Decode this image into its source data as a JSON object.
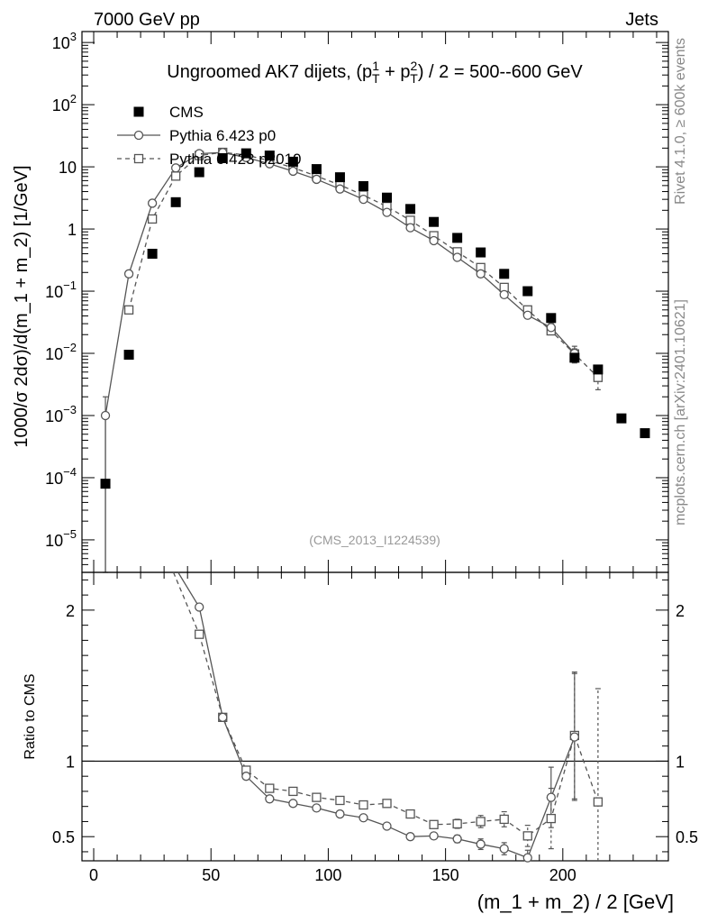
{
  "header": {
    "left": "7000 GeV pp",
    "right": "Jets"
  },
  "side_labels": {
    "rivet": "Rivet 4.1.0, ≥ 600k events",
    "mcplots": "mcplots.cern.ch [arXiv:2401.10621]"
  },
  "chart_data": [
    {
      "type": "scatter",
      "title": "Ungroomed AK7 dijets, (p_T^1 + p_T^2) / 2 = 500--600 GeV",
      "ylabel": "1000/σ 2dσ)/d(m_1 + m_2) [1/GeV]",
      "xlabel": "",
      "yscale": "log",
      "xlim": [
        -5,
        245
      ],
      "ylim": [
        3e-06,
        1500
      ],
      "watermark": "(CMS_2013_I1224539)",
      "y_ticks": [
        "10^-5",
        "10^-4",
        "10^-3",
        "10^-2",
        "10^-1",
        "1",
        "10",
        "10^2",
        "10^3"
      ],
      "series": [
        {
          "name": "CMS",
          "style": "marker",
          "color": "#000000",
          "x": [
            5,
            15,
            25,
            35,
            45,
            55,
            65,
            75,
            85,
            95,
            105,
            115,
            125,
            135,
            145,
            155,
            165,
            175,
            185,
            195,
            205,
            215,
            225,
            235
          ],
          "y": [
            8e-05,
            0.0095,
            0.4,
            2.7,
            8.2,
            13.8,
            16.5,
            15.2,
            12.1,
            9.2,
            6.8,
            4.9,
            3.2,
            2.1,
            1.3,
            0.72,
            0.42,
            0.19,
            0.1,
            0.037,
            0.0085,
            0.0055,
            0.0009,
            0.00052
          ]
        },
        {
          "name": "Pythia 6.423 p0",
          "style": "solid-circle",
          "color": "#555555",
          "x": [
            5,
            15,
            25,
            35,
            45,
            55,
            65,
            75,
            85,
            95,
            105,
            115,
            125,
            135,
            145,
            155,
            165,
            175,
            185,
            195,
            205
          ],
          "y": [
            0.001,
            0.19,
            2.6,
            9.6,
            16.3,
            17.0,
            14.1,
            11.2,
            8.5,
            6.3,
            4.4,
            3.0,
            1.85,
            1.05,
            0.65,
            0.35,
            0.19,
            0.088,
            0.041,
            0.026,
            0.01
          ],
          "y_err": [
            0.001,
            0,
            0,
            0,
            0,
            0,
            0,
            0,
            0,
            0,
            0,
            0,
            0,
            0,
            0,
            0,
            0,
            0,
            0,
            0.004,
            0.003
          ]
        },
        {
          "name": "Pythia 6.423 p2010",
          "style": "dashed-square",
          "color": "#555555",
          "x": [
            15,
            25,
            35,
            45,
            55,
            65,
            75,
            85,
            95,
            105,
            115,
            125,
            135,
            145,
            155,
            165,
            175,
            185,
            195,
            205,
            215
          ],
          "y": [
            0.05,
            1.45,
            7.1,
            15.2,
            17.1,
            15.5,
            12.5,
            9.7,
            7.1,
            5.1,
            3.5,
            2.3,
            1.38,
            0.78,
            0.43,
            0.24,
            0.115,
            0.05,
            0.023,
            0.0098,
            0.0041
          ],
          "y_err": [
            0,
            0,
            0,
            0,
            0,
            0,
            0,
            0,
            0,
            0,
            0,
            0,
            0,
            0,
            0,
            0,
            0,
            0,
            0.003,
            0.002,
            0.0015
          ]
        }
      ]
    },
    {
      "type": "line",
      "title": "",
      "xlabel": "(m_1 + m_2) / 2 [GeV]",
      "ylabel": "Ratio to CMS",
      "xlim": [
        -5,
        245
      ],
      "ylim": [
        0.34,
        2.25
      ],
      "reference_line": 1,
      "x_ticks": [
        0,
        50,
        100,
        150,
        200
      ],
      "y_ticks": [
        0.5,
        1,
        2
      ],
      "y_tick_labels": [
        "0.5",
        "1",
        "2"
      ],
      "series": [
        {
          "name": "Pythia 6.423 p0",
          "style": "solid-circle",
          "x": [
            45,
            55,
            65,
            75,
            85,
            95,
            105,
            115,
            125,
            135,
            145,
            155,
            165,
            175,
            185,
            195,
            205
          ],
          "y": [
            2.02,
            1.29,
            0.9,
            0.75,
            0.72,
            0.69,
            0.65,
            0.625,
            0.57,
            0.5,
            0.505,
            0.485,
            0.45,
            0.42,
            0.36,
            0.76,
            1.16
          ],
          "y_err": [
            0,
            0,
            0,
            0,
            0,
            0,
            0,
            0,
            0,
            0.01,
            0.02,
            0.025,
            0.035,
            0.04,
            0.05,
            0.2,
            0.42
          ]
        },
        {
          "name": "Pythia 6.423 p2010",
          "style": "dashed-square",
          "x": [
            45,
            55,
            65,
            75,
            85,
            95,
            105,
            115,
            125,
            135,
            145,
            155,
            165,
            175,
            185,
            195,
            205,
            215
          ],
          "y": [
            1.84,
            1.29,
            0.94,
            0.82,
            0.8,
            0.76,
            0.74,
            0.71,
            0.72,
            0.65,
            0.58,
            0.585,
            0.6,
            0.615,
            0.505,
            0.62,
            1.17,
            0.73
          ],
          "y_err": [
            0,
            0,
            0,
            0.01,
            0.01,
            0.01,
            0.01,
            0.01,
            0.01,
            0.015,
            0.025,
            0.03,
            0.04,
            0.05,
            0.07,
            0.2,
            0.42,
            0.75
          ]
        }
      ]
    }
  ]
}
